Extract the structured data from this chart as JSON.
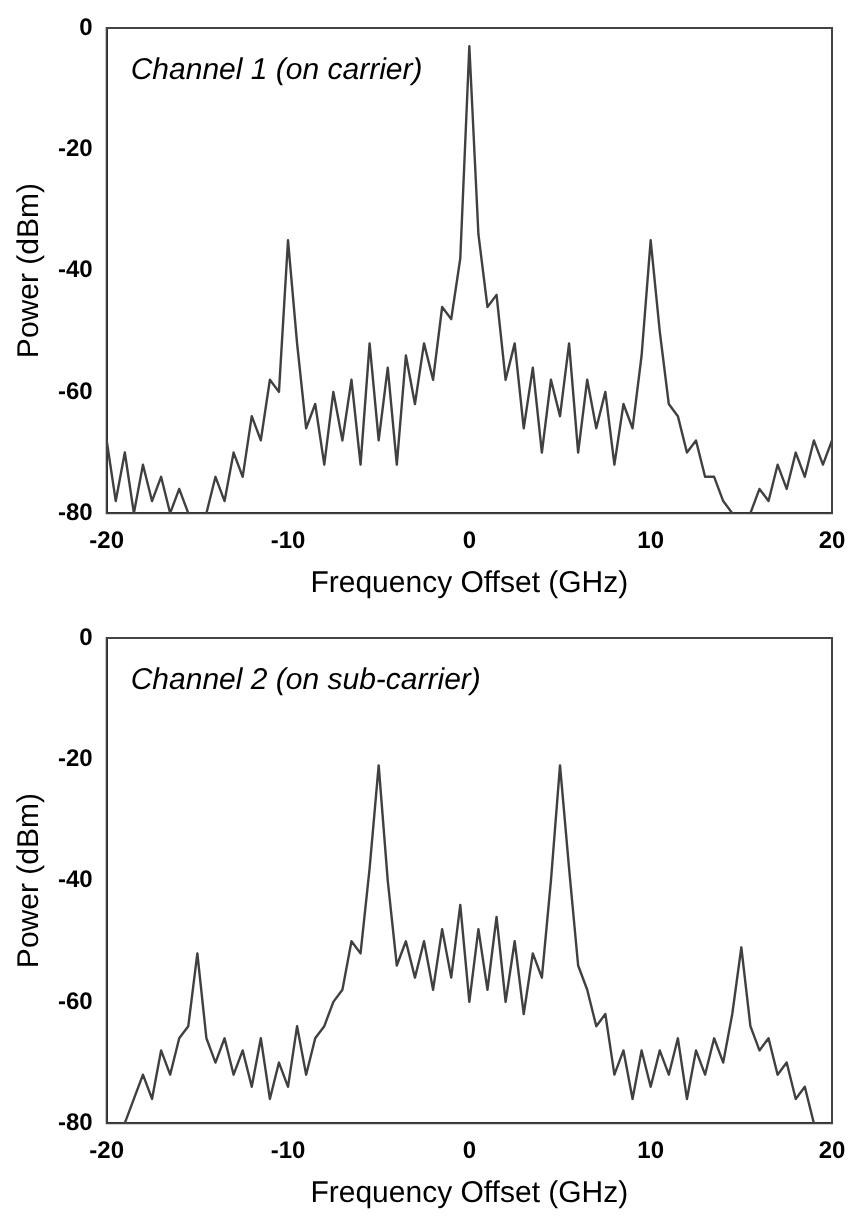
{
  "chart_data": [
    {
      "type": "line",
      "xlabel": "Frequency Offset (GHz)",
      "ylabel": "Power (dBm)",
      "annotations": [
        "Channel 1 (on carrier)"
      ],
      "xlim": [
        -20,
        20
      ],
      "xticks": [
        -20,
        -10,
        0,
        10,
        20
      ],
      "ylim": [
        -80,
        0
      ],
      "yticks": [
        -80,
        -60,
        -40,
        -20,
        0
      ],
      "grid": false,
      "legend": false,
      "marker": "none",
      "line_style": "solid",
      "x": [
        -20,
        -19.5,
        -19,
        -18.5,
        -18,
        -17.5,
        -17,
        -16.5,
        -16,
        -15.5,
        -15,
        -14.5,
        -14,
        -13.5,
        -13,
        -12.5,
        -12,
        -11.5,
        -11,
        -10.5,
        -10,
        -9.5,
        -9,
        -8.5,
        -8,
        -7.5,
        -7,
        -6.5,
        -6,
        -5.5,
        -5,
        -4.5,
        -4,
        -3.5,
        -3,
        -2.5,
        -2,
        -1.5,
        -1,
        -0.5,
        0,
        0.5,
        1,
        1.5,
        2,
        2.5,
        3,
        3.5,
        4,
        4.5,
        5,
        5.5,
        6,
        6.5,
        7,
        7.5,
        8,
        8.5,
        9,
        9.5,
        10,
        10.5,
        11,
        11.5,
        12,
        12.5,
        13,
        13.5,
        14,
        14.5,
        15,
        15.5,
        16,
        16.5,
        17,
        17.5,
        18,
        18.5,
        19,
        19.5,
        20
      ],
      "series": [
        {
          "color": "#404040",
          "values": [
            -68,
            -78,
            -70,
            -80,
            -72,
            -78,
            -74,
            -80,
            -76,
            -80,
            null,
            -80,
            -74,
            -78,
            -70,
            -74,
            -64,
            -68,
            -58,
            -60,
            -35,
            -52,
            -66,
            -62,
            -72,
            -60,
            -68,
            -58,
            -72,
            -52,
            -68,
            -56,
            -72,
            -54,
            -62,
            -52,
            -58,
            -46,
            -48,
            -38,
            -3,
            -34,
            -46,
            -44,
            -58,
            -52,
            -66,
            -56,
            -70,
            -58,
            -64,
            -52,
            -70,
            -58,
            -66,
            -60,
            -72,
            -62,
            -66,
            -54,
            -35,
            -50,
            -62,
            -64,
            -70,
            -68,
            -74,
            -74,
            -78,
            -80,
            null,
            -80,
            -76,
            -78,
            -72,
            -76,
            -70,
            -74,
            -68,
            -72,
            -68
          ]
        }
      ]
    },
    {
      "type": "line",
      "xlabel": "Frequency Offset (GHz)",
      "ylabel": "Power (dBm)",
      "annotations": [
        "Channel 2 (on sub-carrier)"
      ],
      "xlim": [
        -20,
        20
      ],
      "xticks": [
        -20,
        -10,
        0,
        10,
        20
      ],
      "ylim": [
        -80,
        0
      ],
      "yticks": [
        -80,
        -60,
        -40,
        -20,
        0
      ],
      "grid": false,
      "legend": false,
      "marker": "none",
      "line_style": "solid",
      "x": [
        -19,
        -18.5,
        -18,
        -17.5,
        -17,
        -16.5,
        -16,
        -15.5,
        -15,
        -14.5,
        -14,
        -13.5,
        -13,
        -12.5,
        -12,
        -11.5,
        -11,
        -10.5,
        -10,
        -9.5,
        -9,
        -8.5,
        -8,
        -7.5,
        -7,
        -6.5,
        -6,
        -5.5,
        -5,
        -4.5,
        -4,
        -3.5,
        -3,
        -2.5,
        -2,
        -1.5,
        -1,
        -0.5,
        0,
        0.5,
        1,
        1.5,
        2,
        2.5,
        3,
        3.5,
        4,
        4.5,
        5,
        5.5,
        6,
        6.5,
        7,
        7.5,
        8,
        8.5,
        9,
        9.5,
        10,
        10.5,
        11,
        11.5,
        12,
        12.5,
        13,
        13.5,
        14,
        14.5,
        15,
        15.5,
        16,
        16.5,
        17,
        17.5,
        18,
        18.5,
        19
      ],
      "series": [
        {
          "color": "#404040",
          "values": [
            -80,
            -76,
            -72,
            -76,
            -68,
            -72,
            -66,
            -64,
            -52,
            -66,
            -70,
            -66,
            -72,
            -68,
            -74,
            -66,
            -76,
            -70,
            -74,
            -64,
            -72,
            -66,
            -64,
            -60,
            -58,
            -50,
            -52,
            -38,
            -21,
            -40,
            -54,
            -50,
            -56,
            -50,
            -58,
            -48,
            -56,
            -44,
            -60,
            -48,
            -58,
            -46,
            -60,
            -50,
            -62,
            -52,
            -56,
            -40,
            -21,
            -38,
            -54,
            -58,
            -64,
            -62,
            -72,
            -68,
            -76,
            -68,
            -74,
            -68,
            -72,
            -66,
            -76,
            -68,
            -72,
            -66,
            -70,
            -62,
            -51,
            -64,
            -68,
            -66,
            -72,
            -70,
            -76,
            -74,
            -80
          ]
        }
      ]
    }
  ]
}
